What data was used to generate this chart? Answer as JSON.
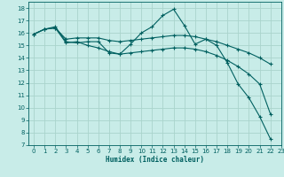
{
  "xlabel": "Humidex (Indice chaleur)",
  "bg_color": "#c8ece8",
  "grid_color": "#aad4cc",
  "line_color": "#006060",
  "xlim": [
    -0.5,
    23
  ],
  "ylim": [
    7,
    18.5
  ],
  "xtick_labels": [
    "0",
    "1",
    "2",
    "3",
    "4",
    "5",
    "6",
    "7",
    "8",
    "9",
    "10",
    "11",
    "12",
    "13",
    "14",
    "15",
    "16",
    "17",
    "18",
    "19",
    "20",
    "21",
    "22",
    "23"
  ],
  "xticks": [
    0,
    1,
    2,
    3,
    4,
    5,
    6,
    7,
    8,
    9,
    10,
    11,
    12,
    13,
    14,
    15,
    16,
    17,
    18,
    19,
    20,
    21,
    22,
    23
  ],
  "yticks": [
    7,
    8,
    9,
    10,
    11,
    12,
    13,
    14,
    15,
    16,
    17,
    18
  ],
  "series": [
    {
      "x": [
        0,
        1,
        2,
        3,
        4,
        5,
        6,
        7,
        8,
        9,
        10,
        11,
        12,
        13,
        14,
        15,
        16,
        17,
        18,
        19,
        20,
        21,
        22
      ],
      "y": [
        15.9,
        16.3,
        16.5,
        15.3,
        15.2,
        15.3,
        15.3,
        14.4,
        14.3,
        15.1,
        16.0,
        16.5,
        17.4,
        17.9,
        16.6,
        15.1,
        15.5,
        15.0,
        13.6,
        11.9,
        10.8,
        9.3,
        7.5
      ]
    },
    {
      "x": [
        0,
        1,
        2,
        3,
        4,
        5,
        6,
        7,
        8,
        9,
        10,
        11,
        12,
        13,
        14,
        15,
        16,
        17,
        18,
        19,
        20,
        21,
        22
      ],
      "y": [
        15.9,
        16.3,
        16.4,
        15.5,
        15.6,
        15.6,
        15.6,
        15.4,
        15.3,
        15.4,
        15.5,
        15.6,
        15.7,
        15.8,
        15.8,
        15.7,
        15.5,
        15.3,
        15.0,
        14.7,
        14.4,
        14.0,
        13.5
      ]
    },
    {
      "x": [
        0,
        1,
        2,
        3,
        4,
        5,
        6,
        7,
        8,
        9,
        10,
        11,
        12,
        13,
        14,
        15,
        16,
        17,
        18,
        19,
        20,
        21,
        22
      ],
      "y": [
        15.9,
        16.3,
        16.4,
        15.2,
        15.3,
        15.0,
        14.8,
        14.5,
        14.3,
        14.4,
        14.5,
        14.6,
        14.7,
        14.8,
        14.8,
        14.7,
        14.5,
        14.2,
        13.8,
        13.3,
        12.7,
        11.9,
        9.5
      ]
    }
  ]
}
